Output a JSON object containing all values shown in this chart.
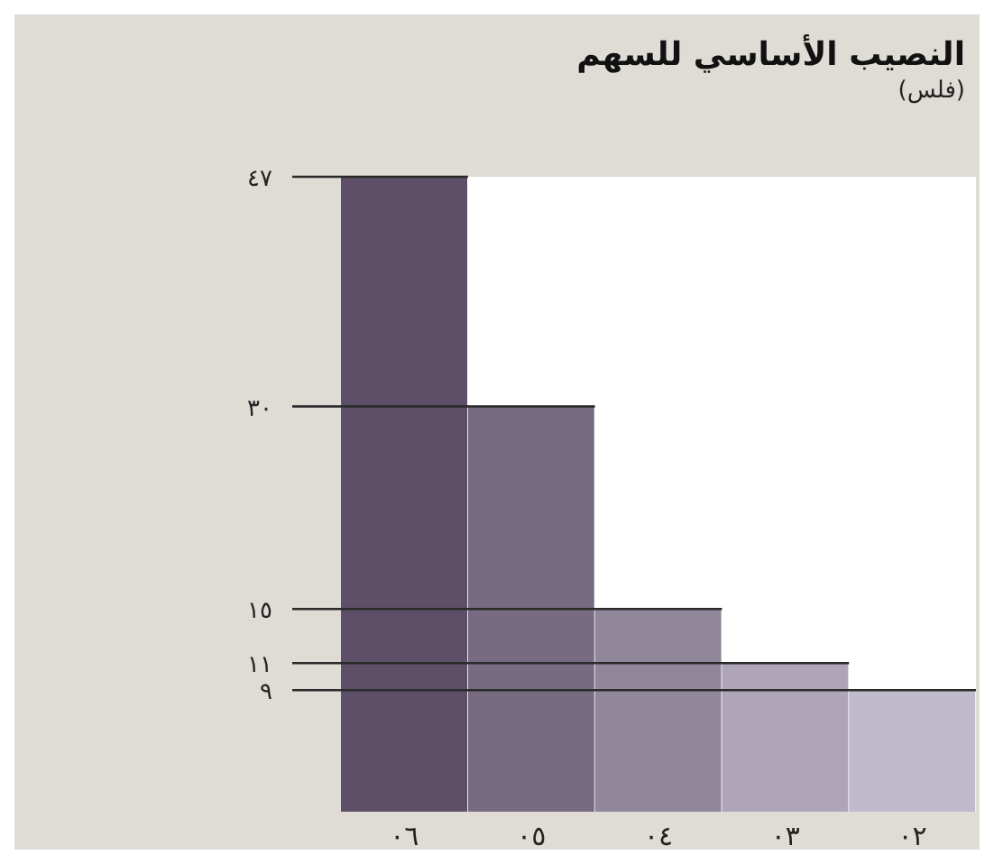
{
  "chart_data": {
    "type": "bar",
    "title": "النصيب الأساسي للسهم",
    "subtitle": "(فلس)",
    "categories": [
      "٠٦",
      "٠٥",
      "٠٤",
      "٠٣",
      "٠٢"
    ],
    "values": [
      47,
      30,
      15,
      11,
      9
    ],
    "colors": [
      "#5e4f68",
      "#766b80",
      "#90879b",
      "#aea6b8",
      "#c0bbcc"
    ],
    "ylim": [
      0,
      47
    ],
    "yticks": [
      {
        "value": 9,
        "label": "٩"
      },
      {
        "value": 11,
        "label": "١١"
      },
      {
        "value": 15,
        "label": "١٥"
      },
      {
        "value": 30,
        "label": "٣٠"
      },
      {
        "value": 47,
        "label": "٤٧"
      }
    ],
    "ref_lines": [
      {
        "axis": "y",
        "value": 47,
        "color": "#2a2a2a"
      },
      {
        "axis": "y",
        "value": 30,
        "color": "#2a2a2a"
      },
      {
        "axis": "y",
        "value": 15,
        "color": "#2a2a2a"
      },
      {
        "axis": "y",
        "value": 11,
        "color": "#2a2a2a"
      },
      {
        "axis": "y",
        "value": 9,
        "color": "#2a2a2a"
      }
    ]
  }
}
